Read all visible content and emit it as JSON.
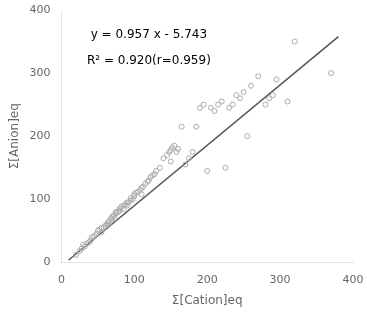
{
  "chart_data": {
    "type": "scatter",
    "x_label": "Σ[Cation]eq",
    "y_label": "Σ[Anion]eq",
    "annotations": [
      "y = 0.957 x - 5.743",
      "R² = 0.920(r=0.959)"
    ],
    "series": [
      {
        "type": "scatter",
        "color": "#aaaaaa",
        "marker": "circle",
        "x": [
          20,
          25,
          28,
          30,
          32,
          35,
          38,
          40,
          42,
          45,
          48,
          50,
          52,
          55,
          55,
          58,
          60,
          62,
          63,
          65,
          65,
          68,
          70,
          70,
          72,
          73,
          75,
          75,
          78,
          80,
          80,
          82,
          85,
          85,
          88,
          90,
          90,
          92,
          95,
          95,
          98,
          100,
          100,
          102,
          105,
          108,
          110,
          110,
          112,
          115,
          118,
          120,
          122,
          125,
          128,
          130,
          135,
          140,
          145,
          148,
          150,
          150,
          152,
          155,
          158,
          160,
          165,
          170,
          175,
          180,
          185,
          190,
          195,
          200,
          205,
          210,
          215,
          220,
          225,
          230,
          235,
          240,
          245,
          250,
          255,
          260,
          270,
          280,
          285,
          290,
          295,
          310,
          320,
          370
        ],
        "values": [
          12,
          18,
          22,
          28,
          25,
          30,
          32,
          35,
          40,
          42,
          45,
          50,
          52,
          48,
          55,
          55,
          58,
          60,
          62,
          60,
          65,
          70,
          68,
          72,
          75,
          70,
          78,
          80,
          80,
          82,
          85,
          88,
          85,
          90,
          92,
          90,
          95,
          95,
          98,
          102,
          100,
          105,
          108,
          110,
          112,
          115,
          108,
          118,
          120,
          125,
          128,
          130,
          135,
          138,
          140,
          145,
          150,
          165,
          170,
          175,
          160,
          178,
          182,
          185,
          175,
          180,
          215,
          155,
          165,
          175,
          215,
          245,
          250,
          145,
          245,
          240,
          250,
          255,
          150,
          245,
          250,
          265,
          260,
          270,
          200,
          280,
          295,
          250,
          260,
          265,
          290,
          255,
          350,
          300
        ]
      },
      {
        "type": "line",
        "color": "#555555",
        "x": [
          10,
          380
        ],
        "values": [
          3.827,
          357.917
        ]
      }
    ],
    "xlim": [
      0,
      400
    ],
    "ylim": [
      0,
      400
    ],
    "xticks": [
      0,
      100,
      200,
      300,
      400
    ],
    "yticks": [
      0,
      100,
      200,
      300,
      400
    ],
    "grid": false
  }
}
